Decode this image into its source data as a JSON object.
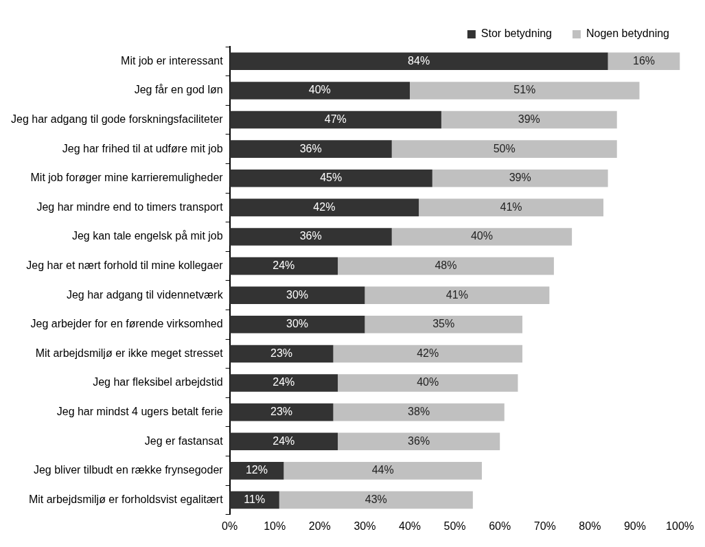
{
  "chart_data": {
    "type": "bar",
    "orientation": "horizontal",
    "stacked": true,
    "legend": "top right",
    "grid": false,
    "categories": [
      "Mit job er interessant",
      "Jeg får en god løn",
      "Jeg har adgang til gode forskningsfaciliteter",
      "Jeg har frihed til at udføre mit job",
      "Mit job forøger mine karrieremuligheder",
      "Jeg har mindre end to timers transport",
      "Jeg kan tale engelsk på mit job",
      "Jeg har et nært forhold til mine kollegaer",
      "Jeg har adgang til vidennetværk",
      "Jeg arbejder for en førende virksomhed",
      "Mit arbejdsmiljø er ikke meget stresset",
      "Jeg har fleksibel arbejdstid",
      "Jeg har mindst 4 ugers betalt ferie",
      "Jeg er fastansat",
      "Jeg bliver tilbudt en række frynsegoder",
      "Mit arbejdsmiljø er forholdsvist egalitært"
    ],
    "series": [
      {
        "name": "Stor betydning",
        "color": "#333333",
        "values": [
          84,
          40,
          47,
          36,
          45,
          42,
          36,
          24,
          30,
          30,
          23,
          24,
          23,
          24,
          12,
          11
        ],
        "value_labels": [
          "84%",
          "40%",
          "47%",
          "36%",
          "45%",
          "42%",
          "36%",
          "24%",
          "30%",
          "30%",
          "23%",
          "24%",
          "23%",
          "24%",
          "12%",
          "11%"
        ]
      },
      {
        "name": "Nogen betydning",
        "color": "#c0c0c0",
        "values": [
          16,
          51,
          39,
          50,
          39,
          41,
          40,
          48,
          41,
          35,
          42,
          40,
          38,
          36,
          44,
          43
        ],
        "value_labels": [
          "16%",
          "51%",
          "39%",
          "50%",
          "39%",
          "41%",
          "40%",
          "48%",
          "41%",
          "35%",
          "42%",
          "40%",
          "38%",
          "36%",
          "44%",
          "43%"
        ]
      }
    ],
    "xlim": [
      0,
      100
    ],
    "xticks": [
      {
        "value": 0,
        "label": "0%"
      },
      {
        "value": 10,
        "label": "10%"
      },
      {
        "value": 20,
        "label": "20%"
      },
      {
        "value": 30,
        "label": "30%"
      },
      {
        "value": 40,
        "label": "40%"
      },
      {
        "value": 50,
        "label": "50%"
      },
      {
        "value": 60,
        "label": "60%"
      },
      {
        "value": 70,
        "label": "70%"
      },
      {
        "value": 80,
        "label": "80%"
      },
      {
        "value": 90,
        "label": "90%"
      },
      {
        "value": 100,
        "label": "100%"
      }
    ]
  }
}
